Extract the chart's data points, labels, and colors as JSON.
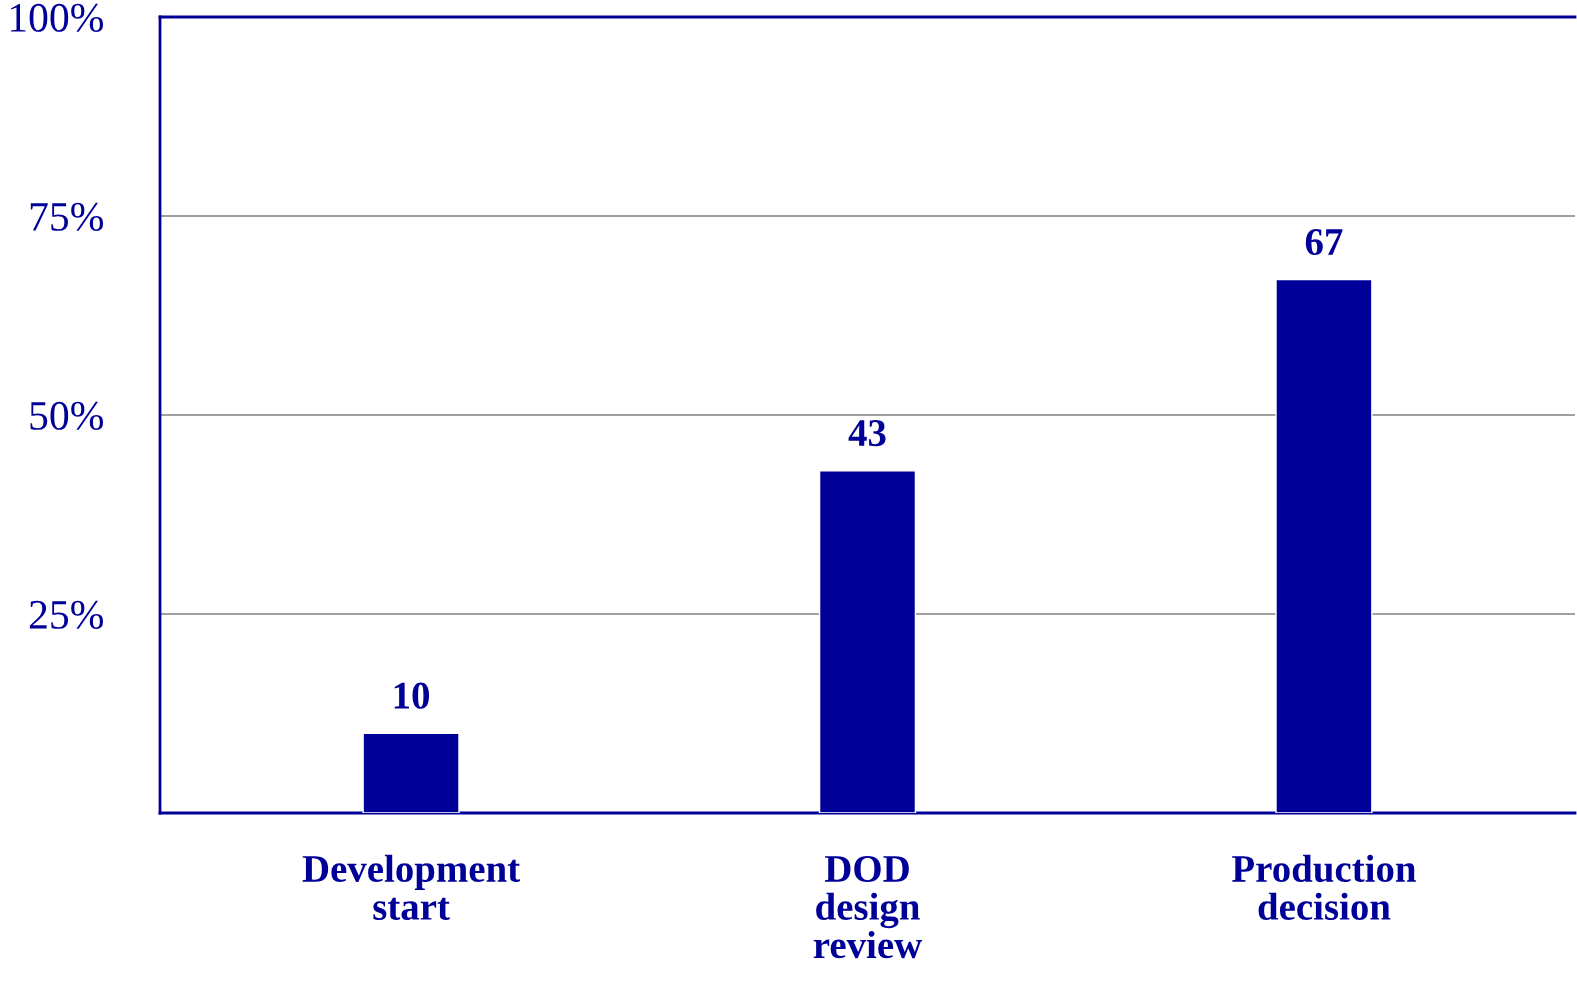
{
  "chart_data": {
    "type": "bar",
    "categories": [
      "Development\nstart",
      "DOD\ndesign\nreview",
      "Production\ndecision"
    ],
    "values": [
      10,
      43,
      67
    ],
    "color": "#000099",
    "ylim": [
      0,
      100
    ],
    "yticks": [
      {
        "value": 25,
        "label": "25%"
      },
      {
        "value": 50,
        "label": "50%"
      },
      {
        "value": 75,
        "label": "75%"
      },
      {
        "value": 100,
        "label": "100%"
      }
    ],
    "grid": "y",
    "data_labels": true
  }
}
